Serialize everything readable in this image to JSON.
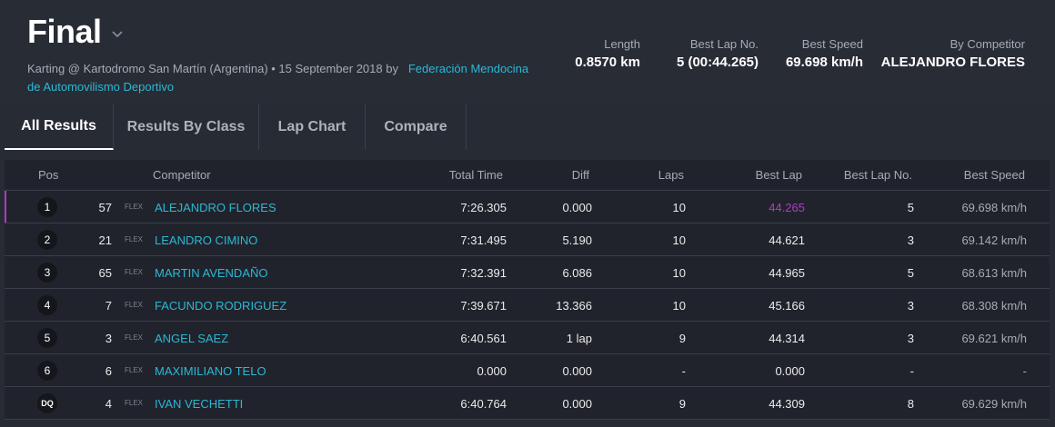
{
  "header": {
    "title": "Final",
    "subtitle_prefix": "Karting @ Kartodromo San Martín (Argentina) • 15 September 2018 by",
    "organizer_link": "Federación Mendocina de Automovilismo Deportivo"
  },
  "stats": [
    {
      "label": "Length",
      "value": "0.8570 km"
    },
    {
      "label": "Best Lap No.",
      "value": "5 (00:44.265)"
    },
    {
      "label": "Best Speed",
      "value": "69.698 km/h"
    },
    {
      "label": "By Competitor",
      "value": "ALEJANDRO FLORES"
    }
  ],
  "tabs": [
    "All Results",
    "Results By Class",
    "Lap Chart",
    "Compare"
  ],
  "columns": {
    "pos": "Pos",
    "competitor": "Competitor",
    "total": "Total Time",
    "diff": "Diff",
    "laps": "Laps",
    "best": "Best Lap",
    "bestno": "Best Lap No.",
    "speed": "Best Speed"
  },
  "rows": [
    {
      "pos": "1",
      "kart": "57",
      "cls": "FLEX",
      "name": "ALEJANDRO FLORES",
      "total": "7:26.305",
      "diff": "0.000",
      "laps": "10",
      "best": "44.265",
      "bestno": "5",
      "speed": "69.698 km/h"
    },
    {
      "pos": "2",
      "kart": "21",
      "cls": "FLEX",
      "name": "LEANDRO CIMINO",
      "total": "7:31.495",
      "diff": "5.190",
      "laps": "10",
      "best": "44.621",
      "bestno": "3",
      "speed": "69.142 km/h"
    },
    {
      "pos": "3",
      "kart": "65",
      "cls": "FLEX",
      "name": "MARTIN AVENDAÑO",
      "total": "7:32.391",
      "diff": "6.086",
      "laps": "10",
      "best": "44.965",
      "bestno": "5",
      "speed": "68.613 km/h"
    },
    {
      "pos": "4",
      "kart": "7",
      "cls": "FLEX",
      "name": "FACUNDO RODRIGUEZ",
      "total": "7:39.671",
      "diff": "13.366",
      "laps": "10",
      "best": "45.166",
      "bestno": "3",
      "speed": "68.308 km/h"
    },
    {
      "pos": "5",
      "kart": "3",
      "cls": "FLEX",
      "name": "ANGEL SAEZ",
      "total": "6:40.561",
      "diff": "1 lap",
      "laps": "9",
      "best": "44.314",
      "bestno": "3",
      "speed": "69.621 km/h"
    },
    {
      "pos": "6",
      "kart": "6",
      "cls": "FLEX",
      "name": "MAXIMILIANO TELO",
      "total": "0.000",
      "diff": "0.000",
      "laps": "-",
      "best": "0.000",
      "bestno": "-",
      "speed": "-"
    },
    {
      "pos": "DQ",
      "kart": "4",
      "cls": "FLEX",
      "name": "IVAN VECHETTI",
      "total": "6:40.764",
      "diff": "0.000",
      "laps": "9",
      "best": "44.309",
      "bestno": "8",
      "speed": "69.629 km/h"
    }
  ],
  "colors": {
    "accent_link": "#2bb8d6",
    "best_lap_highlight": "#b03bc7",
    "background": "#272b34"
  }
}
